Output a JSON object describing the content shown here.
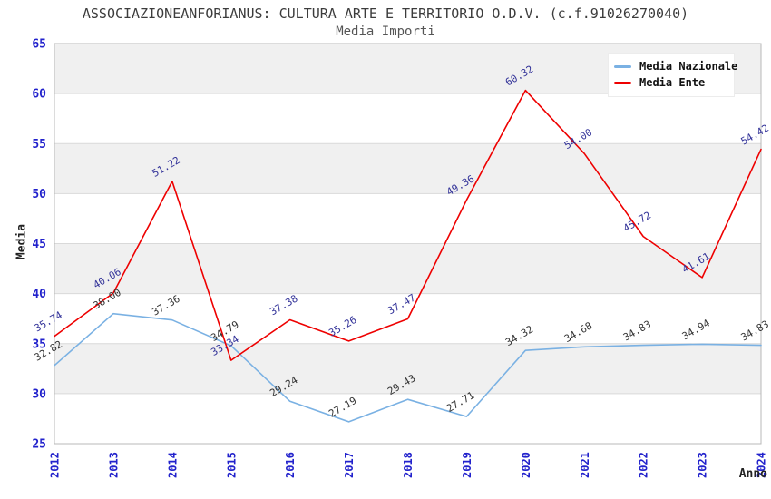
{
  "header": {
    "title": "ASSOCIAZIONEANFORIANUS: CULTURA ARTE E TERRITORIO O.D.V. (c.f.91026270040)",
    "subtitle": "Media Importi"
  },
  "chart_data": {
    "type": "line",
    "title": "ASSOCIAZIONEANFORIANUS: CULTURA ARTE E TERRITORIO O.D.V. (c.f.91026270040)",
    "subtitle": "Media Importi",
    "xlabel": "Anno",
    "ylabel": "Media",
    "categories": [
      "2012",
      "2013",
      "2014",
      "2015",
      "2016",
      "2017",
      "2018",
      "2019",
      "2020",
      "2021",
      "2022",
      "2023",
      "2024"
    ],
    "series": [
      {
        "name": "Media Nazionale",
        "color": "#7ab1e3",
        "label_color": "#333333",
        "values": [
          32.82,
          38.0,
          37.36,
          34.79,
          29.24,
          27.19,
          29.43,
          27.71,
          34.32,
          34.68,
          34.83,
          34.94,
          34.83
        ]
      },
      {
        "name": "Media Ente",
        "color": "#ee0000",
        "label_color": "#333399",
        "values": [
          35.74,
          40.06,
          51.22,
          33.34,
          37.38,
          35.26,
          37.47,
          49.36,
          60.32,
          54.0,
          45.72,
          41.61,
          54.42
        ]
      }
    ],
    "ylim": [
      25,
      65
    ],
    "ytick_step": 5,
    "grid": true,
    "legend_position": "top-right",
    "colors": {
      "band": "#f0f0f0",
      "gridline": "#d9d9d9",
      "plot_border": "#b8b8b8",
      "tick_label": "#2222cc",
      "axis_title": "#222222",
      "title_text": "#3c3c3c"
    },
    "value_label_decimals": 2
  }
}
